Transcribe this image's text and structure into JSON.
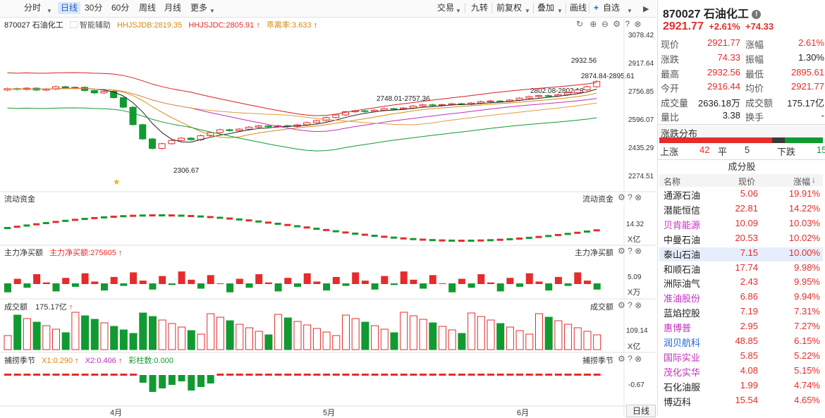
{
  "toolbar": {
    "periods": [
      "分时",
      "日线",
      "30分",
      "60分",
      "周线",
      "月线",
      "更多"
    ],
    "active_period": "日线",
    "right_buttons": [
      "交易",
      "九转",
      "前复权",
      "叠加",
      "画线",
      "自选"
    ]
  },
  "chart_header": {
    "code_name": "870027 石油化工",
    "assist": "智能辅助",
    "hhjsjdb": "HHJSJDB:2819.35",
    "hhjsjdc": "HHJSJDC:2805.91",
    "deviation": "乖离率:3.633"
  },
  "price_axis": [
    "3078.42",
    "2917.64",
    "2756.85",
    "2596.07",
    "2435.29",
    "2274.51"
  ],
  "annotations": {
    "low": "2306.67",
    "high": "2932.56",
    "range1": "2748.01-2757.36",
    "range2": "2802.08-2802.13",
    "range3": "2874.84-2895.61"
  },
  "panels": {
    "fund_flow": {
      "title": "流动资金",
      "right_title": "流动资金",
      "axis_value": "14.32",
      "unit": "X亿"
    },
    "net_buy": {
      "title": "主力净买额",
      "value_label": "主力净买额:275605",
      "right_title": "主力净买额",
      "axis_value": "5.09",
      "unit": "X万"
    },
    "volume": {
      "title": "成交额",
      "value_label": "175.17亿",
      "right_title": "成交额",
      "axis_value": "109.14",
      "unit": "X亿"
    },
    "season": {
      "title": "捕捞季节",
      "x1": "X1:0.290",
      "x2": "X2:0.406",
      "bars": "彩柱数:0.000",
      "right_title": "捕捞季节",
      "axis_value": "-0.67"
    }
  },
  "x_axis": {
    "labels": [
      "4月",
      "5月",
      "6月"
    ],
    "period_button": "日线"
  },
  "quote": {
    "code": "870027",
    "name": "石油化工",
    "price": "2921.77",
    "change_pct": "+2.61%",
    "change": "+74.33",
    "fields": [
      {
        "l1": "现价",
        "v1": "2921.77",
        "c1": "red",
        "l2": "涨幅",
        "v2": "2.61%",
        "c2": "red"
      },
      {
        "l1": "涨跌",
        "v1": "74.33",
        "c1": "red",
        "l2": "振幅",
        "v2": "1.30%",
        "c2": "dark"
      },
      {
        "l1": "最高",
        "v1": "2932.56",
        "c1": "red",
        "l2": "最低",
        "v2": "2895.61",
        "c2": "red"
      },
      {
        "l1": "今开",
        "v1": "2916.44",
        "c1": "red",
        "l2": "均价",
        "v2": "2921.77",
        "c2": "red"
      },
      {
        "l1": "成交量",
        "v1": "2636.18万",
        "c1": "dark",
        "l2": "成交额",
        "v2": "175.17亿",
        "c2": "dark"
      },
      {
        "l1": "量比",
        "v1": "3.38",
        "c1": "dark",
        "l2": "换手",
        "v2": "-",
        "c2": "dark"
      }
    ],
    "distribution_title": "涨跌分布",
    "up_label": "上涨",
    "up_count": "42",
    "flat_label": "平",
    "flat_count": "5",
    "down_label": "下跌",
    "down_count": "15",
    "components_title": "成分股",
    "col_name": "名称",
    "col_price": "现价",
    "col_pct": "涨幅",
    "stocks": [
      {
        "name": "通源石油",
        "price": "5.06",
        "pct": "19.91%"
      },
      {
        "name": "潜能恒信",
        "price": "22.81",
        "pct": "14.22%"
      },
      {
        "name": "贝肯能源",
        "price": "10.09",
        "pct": "10.03%"
      },
      {
        "name": "中曼石油",
        "price": "20.53",
        "pct": "10.02%"
      },
      {
        "name": "泰山石油",
        "price": "7.15",
        "pct": "10.00%"
      },
      {
        "name": "和顺石油",
        "price": "17.74",
        "pct": "9.98%"
      },
      {
        "name": "洲际油气",
        "price": "2.43",
        "pct": "9.95%"
      },
      {
        "name": "准油股份",
        "price": "6.86",
        "pct": "9.94%"
      },
      {
        "name": "蓝焰控股",
        "price": "7.19",
        "pct": "7.31%"
      },
      {
        "name": "惠博普",
        "price": "2.95",
        "pct": "7.27%"
      },
      {
        "name": "润贝航科",
        "price": "48.85",
        "pct": "6.15%"
      },
      {
        "name": "国际实业",
        "price": "5.85",
        "pct": "5.22%"
      },
      {
        "name": "茂化实华",
        "price": "4.08",
        "pct": "5.15%"
      },
      {
        "name": "石化油服",
        "price": "1.99",
        "pct": "4.74%"
      },
      {
        "name": "博迈科",
        "price": "15.54",
        "pct": "4.65%"
      }
    ],
    "colors": {
      "up": "#e62b2b",
      "down": "#119a31",
      "accent": "#1d5fd1",
      "link": "#c22fbf"
    }
  }
}
